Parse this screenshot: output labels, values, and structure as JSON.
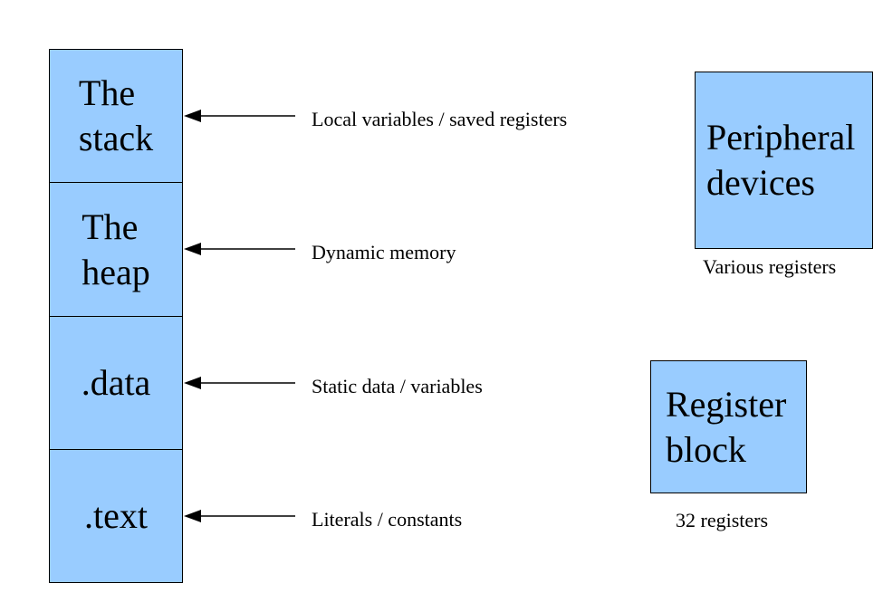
{
  "memory_segments": [
    {
      "label": "The\nstack",
      "description": "Local variables / saved registers"
    },
    {
      "label": "The\nheap",
      "description": "Dynamic memory"
    },
    {
      "label": ".data",
      "description": "Static data / variables"
    },
    {
      "label": ".text",
      "description": "Literals / constants"
    }
  ],
  "peripheral": {
    "label": "Peripheral\ndevices",
    "caption": "Various registers"
  },
  "register_block": {
    "label": "Register\nblock",
    "caption": "32 registers"
  },
  "colors": {
    "box_fill": "#99ccff",
    "border": "#000000"
  }
}
